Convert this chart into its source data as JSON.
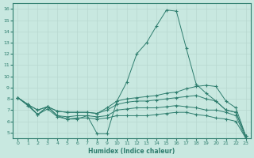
{
  "xlabel": "Humidex (Indice chaleur)",
  "xlim": [
    -0.5,
    23.5
  ],
  "ylim": [
    4.5,
    16.5
  ],
  "yticks": [
    5,
    6,
    7,
    8,
    9,
    10,
    11,
    12,
    13,
    14,
    15,
    16
  ],
  "xticks": [
    0,
    1,
    2,
    3,
    4,
    5,
    6,
    7,
    8,
    9,
    10,
    11,
    12,
    13,
    14,
    15,
    16,
    17,
    18,
    19,
    20,
    21,
    22,
    23
  ],
  "bg_color": "#c8e8e0",
  "grid_color": "#b8d8d0",
  "line_color": "#2e7d6e",
  "curves": [
    [
      8.1,
      7.5,
      6.6,
      7.3,
      6.5,
      6.2,
      6.2,
      6.5,
      4.9,
      4.9,
      7.8,
      9.5,
      12.0,
      13.0,
      14.5,
      15.9,
      15.8,
      12.5,
      9.3,
      8.5,
      7.8,
      7.0,
      6.8,
      4.7
    ],
    [
      8.1,
      7.5,
      7.0,
      7.3,
      6.9,
      6.8,
      6.8,
      6.8,
      6.7,
      7.2,
      7.8,
      8.0,
      8.1,
      8.2,
      8.3,
      8.5,
      8.6,
      8.9,
      9.1,
      9.2,
      9.1,
      7.8,
      7.2,
      4.7
    ],
    [
      8.1,
      7.5,
      7.0,
      7.3,
      6.9,
      6.8,
      6.8,
      6.8,
      6.7,
      7.0,
      7.5,
      7.7,
      7.8,
      7.8,
      7.9,
      8.0,
      8.1,
      8.2,
      8.3,
      8.0,
      7.8,
      7.0,
      6.8,
      4.7
    ],
    [
      8.1,
      7.5,
      6.6,
      7.3,
      6.5,
      6.4,
      6.5,
      6.5,
      6.4,
      6.5,
      7.0,
      7.1,
      7.2,
      7.2,
      7.2,
      7.3,
      7.4,
      7.3,
      7.2,
      7.0,
      7.0,
      6.8,
      6.5,
      4.5
    ],
    [
      8.1,
      7.4,
      6.6,
      7.1,
      6.4,
      6.2,
      6.3,
      6.3,
      6.2,
      6.3,
      6.5,
      6.5,
      6.5,
      6.5,
      6.6,
      6.7,
      6.8,
      6.8,
      6.6,
      6.5,
      6.3,
      6.2,
      6.0,
      4.5
    ]
  ]
}
